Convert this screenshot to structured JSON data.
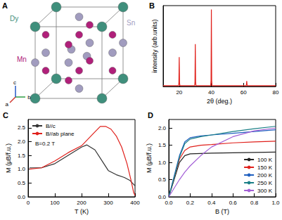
{
  "structure": {
    "panel": "A",
    "atoms": [
      {
        "label": "Dy",
        "color": "#3f8f7c"
      },
      {
        "label": "Sn",
        "color": "#a19cbf"
      },
      {
        "label": "Mn",
        "color": "#b0207a"
      }
    ],
    "axes": [
      "a",
      "b",
      "c"
    ]
  },
  "chart_data": [
    {
      "panel": "B",
      "type": "line",
      "x_label": "2θ (deg.)",
      "y_label": "intensity (arb.units)",
      "x": [
        10,
        19.6,
        19.8,
        20,
        20.2,
        20.4,
        29.6,
        29.8,
        30,
        30.2,
        30.4,
        39.6,
        39.8,
        40,
        40.2,
        40.4,
        61.6,
        61.8,
        62,
        62.2,
        62.4,
        80
      ],
      "values": [
        0.01,
        0.01,
        0.05,
        0.38,
        0.05,
        0.01,
        0.01,
        0.06,
        0.55,
        0.06,
        0.01,
        0.01,
        0.08,
        1,
        0.08,
        0.01,
        0.01,
        0.02,
        0.07,
        0.02,
        0.01,
        0.01
      ],
      "color": "#e0201b",
      "xlim": [
        10,
        80
      ],
      "xticks": [
        20,
        40,
        60,
        80
      ],
      "ylim": [
        0,
        1.05
      ],
      "tick_labels": "x"
    },
    {
      "panel": "C",
      "type": "line",
      "x_label": "T (K)",
      "y_label": "M (μB/f.u.)",
      "series": [
        {
          "name": "B//c",
          "color": "#333333",
          "x": [
            5,
            50,
            100,
            150,
            200,
            220,
            250,
            280,
            300,
            330,
            360,
            380,
            395,
            400
          ],
          "values": [
            1.05,
            1.05,
            1.2,
            1.5,
            1.8,
            1.88,
            1.7,
            1.25,
            0.95,
            0.8,
            0.7,
            0.6,
            0.45,
            0.4
          ]
        },
        {
          "name": "B//ab plane",
          "color": "#e0201b",
          "x": [
            5,
            50,
            100,
            150,
            200,
            250,
            270,
            290,
            310,
            330,
            350,
            370,
            385,
            395,
            400
          ],
          "values": [
            1.0,
            1.05,
            1.3,
            1.6,
            1.85,
            2.35,
            2.55,
            2.55,
            2.45,
            2.2,
            1.8,
            1.2,
            0.6,
            0.15,
            0.05
          ]
        }
      ],
      "annotations": [
        "B=0.2 T"
      ],
      "xlim": [
        0,
        400
      ],
      "xticks": [
        0,
        100,
        200,
        300,
        400
      ],
      "ylim": [
        0,
        2.8
      ],
      "yticks": [
        {
          "value": 0,
          "label": "0.0"
        },
        0.5,
        {
          "value": 1,
          "label": "1.0"
        },
        1.5,
        {
          "value": 2,
          "label": "2.0"
        },
        2.5
      ],
      "legend": "upper left"
    },
    {
      "panel": "D",
      "type": "line",
      "x_label": "B (T)",
      "y_label": "M (μB/f.u.)",
      "x": [
        0,
        0.05,
        0.1,
        0.15,
        0.2,
        0.3,
        0.4,
        0.6,
        0.8,
        1.0
      ],
      "series": [
        {
          "name": "100 K",
          "color": "#222222",
          "values": [
            0,
            0.5,
            1.0,
            1.2,
            1.25,
            1.26,
            1.27,
            1.28,
            1.29,
            1.3
          ]
        },
        {
          "name": "150 K",
          "color": "#e0201b",
          "values": [
            0,
            0.55,
            1.1,
            1.35,
            1.45,
            1.5,
            1.52,
            1.57,
            1.6,
            1.62
          ]
        },
        {
          "name": "200 K",
          "color": "#1f5fbf",
          "values": [
            0,
            0.6,
            1.2,
            1.6,
            1.72,
            1.77,
            1.8,
            1.85,
            1.9,
            1.95
          ]
        },
        {
          "name": "250 K",
          "color": "#1a7f86",
          "values": [
            0,
            0.55,
            1.15,
            1.55,
            1.68,
            1.75,
            1.8,
            1.9,
            1.98,
            2.05
          ]
        },
        {
          "name": "300 K",
          "color": "#a35fd6",
          "values": [
            0,
            0.25,
            0.5,
            0.72,
            0.9,
            1.2,
            1.45,
            1.75,
            1.92,
            2.0
          ]
        }
      ],
      "xlim": [
        0,
        1.0
      ],
      "xticks": [
        {
          "value": 0,
          "label": "0.0"
        },
        0.2,
        0.4,
        0.6,
        0.8,
        {
          "value": 1,
          "label": "1.0"
        }
      ],
      "ylim": [
        0,
        2.25
      ],
      "yticks": [
        {
          "value": 0,
          "label": "0.0"
        },
        0.5,
        {
          "value": 1,
          "label": "1.0"
        },
        1.5,
        {
          "value": 2,
          "label": "2.0"
        }
      ],
      "legend": "lower right"
    }
  ]
}
